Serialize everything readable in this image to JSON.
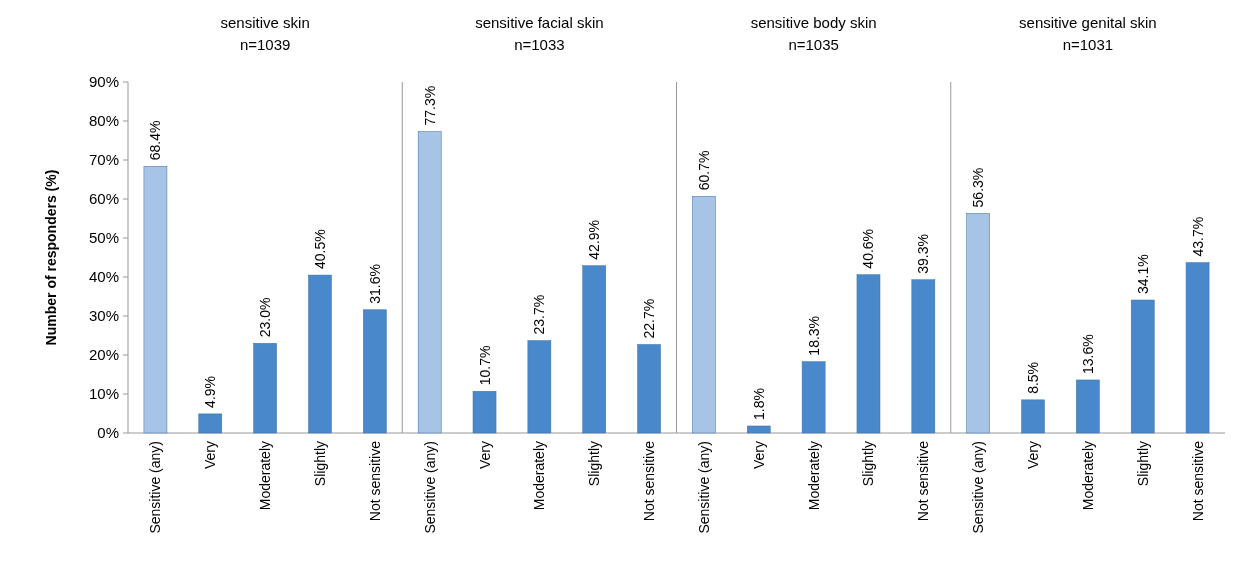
{
  "chart_data": [
    {
      "type": "bar",
      "title": "sensitive skin",
      "subtitle": "n=1039",
      "ylabel": "Number of responders (%)",
      "categories": [
        "Sensitive (any)",
        "Very",
        "Moderately",
        "Slightly",
        "Not sensitive"
      ],
      "values": [
        68.4,
        4.9,
        23.0,
        40.5,
        31.6
      ],
      "value_labels": [
        "68.4%",
        "4.9%",
        "23.0%",
        "40.5%",
        "31.6%"
      ],
      "colors": [
        "#a7c3e6",
        "#4a88cc",
        "#4a88cc",
        "#4a88cc",
        "#4a88cc"
      ],
      "ylim": [
        0,
        90
      ],
      "yticks": [
        {
          "value": 0,
          "label": "0%"
        },
        {
          "value": 10,
          "label": "10%"
        },
        {
          "value": 20,
          "label": "20%"
        },
        {
          "value": 30,
          "label": "30%"
        },
        {
          "value": 40,
          "label": "40%"
        },
        {
          "value": 50,
          "label": "50%"
        },
        {
          "value": 60,
          "label": "60%"
        },
        {
          "value": 70,
          "label": "70%"
        },
        {
          "value": 80,
          "label": "80%"
        },
        {
          "value": 90,
          "label": "90%"
        }
      ],
      "grid": false
    },
    {
      "type": "bar",
      "title": "sensitive facial skin",
      "subtitle": "n=1033",
      "categories": [
        "Sensitive (any)",
        "Very",
        "Moderately",
        "Slightly",
        "Not sensitive"
      ],
      "values": [
        77.3,
        10.7,
        23.7,
        42.9,
        22.7
      ],
      "value_labels": [
        "77.3%",
        "10.7%",
        "23.7%",
        "42.9%",
        "22.7%"
      ],
      "colors": [
        "#a7c3e6",
        "#4a88cc",
        "#4a88cc",
        "#4a88cc",
        "#4a88cc"
      ],
      "ylim": [
        0,
        90
      ],
      "tick_labels": "x",
      "grid": false
    },
    {
      "type": "bar",
      "title": "sensitive body skin",
      "subtitle": "n=1035",
      "categories": [
        "Sensitive (any)",
        "Very",
        "Moderately",
        "Slightly",
        "Not sensitive"
      ],
      "values": [
        60.7,
        1.8,
        18.3,
        40.6,
        39.3
      ],
      "value_labels": [
        "60.7%",
        "1.8%",
        "18.3%",
        "40.6%",
        "39.3%"
      ],
      "colors": [
        "#a7c3e6",
        "#4a88cc",
        "#4a88cc",
        "#4a88cc",
        "#4a88cc"
      ],
      "ylim": [
        0,
        90
      ],
      "tick_labels": "x",
      "grid": false
    },
    {
      "type": "bar",
      "title": "sensitive genital skin",
      "subtitle": "n=1031",
      "categories": [
        "Sensitive (any)",
        "Very",
        "Moderately",
        "Slightly",
        "Not sensitive"
      ],
      "values": [
        56.3,
        8.5,
        13.6,
        34.1,
        43.7
      ],
      "value_labels": [
        "56.3%",
        "8.5%",
        "13.6%",
        "34.1%",
        "43.7%"
      ],
      "colors": [
        "#a7c3e6",
        "#4a88cc",
        "#4a88cc",
        "#4a88cc",
        "#4a88cc"
      ],
      "ylim": [
        0,
        90
      ],
      "tick_labels": "x",
      "grid": false
    }
  ]
}
